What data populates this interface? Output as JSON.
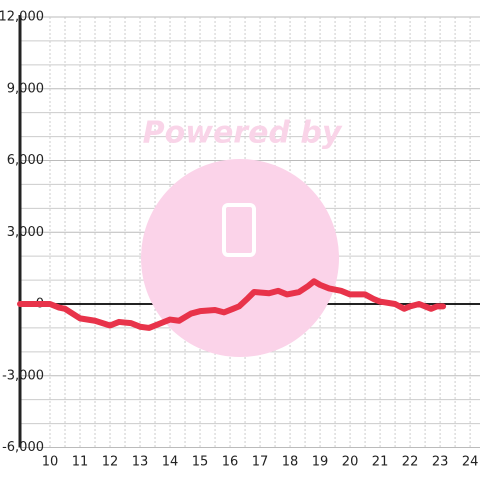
{
  "chart_data": {
    "type": "line",
    "watermark": "Powered by",
    "x": [
      9,
      10,
      10.3,
      10.5,
      11,
      11.5,
      12,
      12.3,
      12.7,
      13,
      13.3,
      13.7,
      14,
      14.3,
      14.7,
      15,
      15.5,
      15.8,
      16.1,
      16.3,
      16.6,
      16.8,
      17.3,
      17.6,
      17.9,
      18.3,
      18.6,
      18.8,
      19,
      19.3,
      19.7,
      20,
      20.5,
      20.8,
      21,
      21.5,
      21.8,
      22,
      22.3,
      22.7,
      22.9,
      23.1
    ],
    "series": [
      {
        "color": "#e8334a",
        "values": [
          0,
          0,
          -150,
          -200,
          -600,
          -700,
          -900,
          -750,
          -800,
          -950,
          -1000,
          -800,
          -650,
          -700,
          -400,
          -300,
          -250,
          -350,
          -200,
          -100,
          250,
          500,
          450,
          550,
          400,
          500,
          750,
          950,
          800,
          650,
          550,
          400,
          400,
          200,
          100,
          0,
          -200,
          -100,
          0,
          -200,
          -100,
          -100
        ]
      }
    ],
    "xlim": [
      9,
      24.33
    ],
    "xticks": [
      10,
      11,
      12,
      13,
      14,
      15,
      16,
      17,
      18,
      19,
      20,
      21,
      22,
      23,
      24
    ],
    "ylim": [
      -6000,
      12000
    ],
    "yticks": [
      {
        "value": -6000,
        "label": "-6,000"
      },
      {
        "value": -3000,
        "label": "-3,000"
      },
      0,
      {
        "value": 3000,
        "label": "3,000"
      },
      {
        "value": 6000,
        "label": "6,000"
      },
      {
        "value": 9000,
        "label": "9,000"
      },
      {
        "value": 12000,
        "label": "12,000"
      }
    ],
    "grid": true
  }
}
